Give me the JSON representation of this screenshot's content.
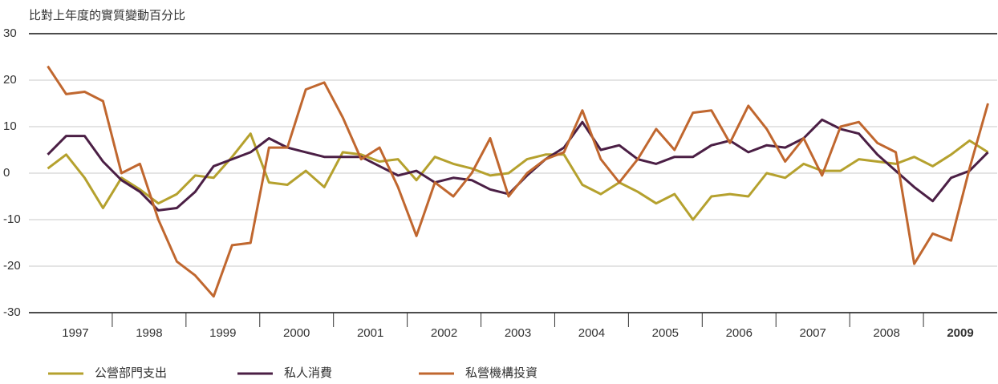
{
  "chart_data": {
    "type": "line",
    "subtitle": "比對上年度的實質變動百分比",
    "categories": [
      "1997",
      null,
      null,
      null,
      "1998",
      null,
      null,
      null,
      "1999",
      null,
      null,
      null,
      "2000",
      null,
      null,
      null,
      "2001",
      null,
      null,
      null,
      "2002",
      null,
      null,
      null,
      "2003",
      null,
      null,
      null,
      "2004",
      null,
      null,
      null,
      "2005",
      null,
      null,
      null,
      "2006",
      null,
      null,
      null,
      "2007",
      null,
      null,
      null,
      "2008",
      null,
      null,
      null,
      "2009",
      null,
      null,
      null
    ],
    "series": [
      {
        "name": "公營部門支出",
        "color": "#b5a12e",
        "values": [
          1,
          4,
          -1,
          -7.5,
          -1,
          -3.5,
          -6.5,
          -4.5,
          -0.5,
          -1,
          3.5,
          8.5,
          -2,
          -2.5,
          0.5,
          -3,
          4.5,
          4,
          2.5,
          3,
          -1.5,
          3.5,
          2,
          1,
          -0.5,
          0,
          3,
          4,
          4,
          -2.5,
          -4.5,
          -2,
          -4,
          -6.5,
          -4.5,
          -10,
          -5,
          -4.5,
          -5,
          0,
          -1,
          2,
          0.5,
          0.5,
          3,
          2.5,
          2,
          3.5,
          1.5,
          4,
          7,
          4.5
        ]
      },
      {
        "name": "私人消費",
        "color": "#4b1f45",
        "values": [
          4,
          8,
          8,
          2.5,
          -1.5,
          -4,
          -8,
          -7.5,
          -4,
          1.5,
          3,
          4.5,
          7.5,
          5.5,
          4.5,
          3.5,
          3.5,
          3.5,
          1.5,
          -0.5,
          0.5,
          -2,
          -1,
          -1.5,
          -3.5,
          -4.5,
          -0.5,
          3,
          5.5,
          11,
          5,
          6,
          3,
          2,
          3.5,
          3.5,
          6,
          7,
          4.5,
          6,
          5.5,
          7.5,
          11.5,
          9.5,
          8.5,
          4,
          0.5,
          -3,
          -6,
          -1,
          0.5,
          4.5
        ]
      },
      {
        "name": "私營機構投資",
        "color": "#c0672f",
        "values": [
          23,
          17,
          17.5,
          15.5,
          0,
          2,
          -10,
          -19,
          -22,
          -26.5,
          -15.5,
          -15,
          5.5,
          5.5,
          18,
          19.5,
          12,
          3,
          5.5,
          -3,
          -13.5,
          -2,
          -5,
          0,
          7.5,
          -5,
          0,
          3,
          4.5,
          13.5,
          3,
          -2,
          3,
          9.5,
          5,
          13,
          13.5,
          6.5,
          14.5,
          9.5,
          2.5,
          7.5,
          -0.5,
          10,
          11,
          6.5,
          4.5,
          -19.5,
          -13,
          -14.5,
          1,
          15
        ]
      }
    ],
    "ylim": [
      -30,
      30
    ],
    "yticks": [
      -30,
      -20,
      -10,
      0,
      10,
      20,
      30
    ],
    "grid": true,
    "legend": "bottom"
  }
}
